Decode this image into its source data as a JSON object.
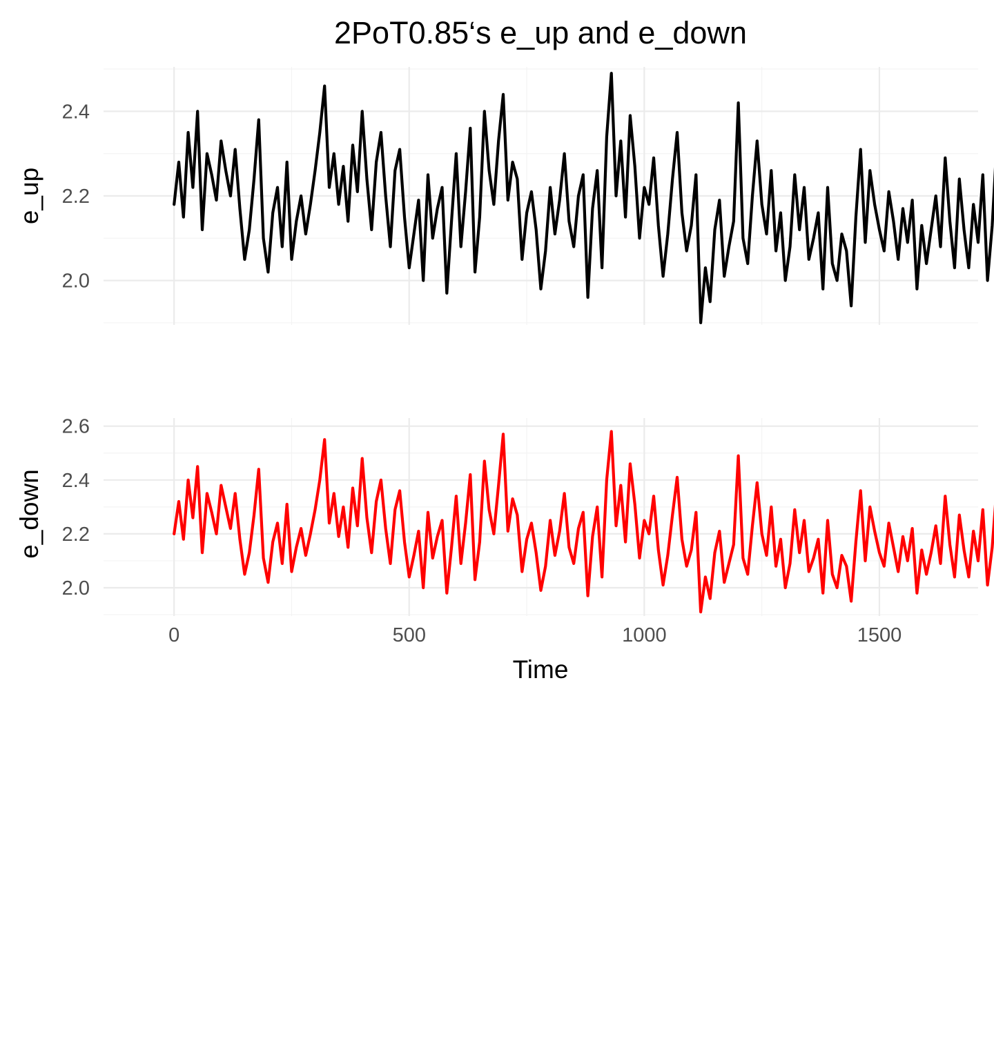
{
  "title": "2PoT0.85‘s e_up and e_down",
  "xlabel": "Time",
  "chart_data": [
    {
      "type": "line",
      "ylabel": "e_up",
      "xlim": [
        -150,
        1710
      ],
      "ylim": [
        1.895,
        2.505
      ],
      "x_ticks": [
        0,
        500,
        1000,
        1500
      ],
      "x_tick_labels": [
        "0",
        "500",
        "1000",
        "1500"
      ],
      "y_ticks": [
        2.0,
        2.2,
        2.4
      ],
      "y_tick_labels": [
        "2.0",
        "2.2",
        "2.4"
      ],
      "grid": true,
      "series": [
        {
          "color": "#000000",
          "x_start": 0,
          "x_step": 10,
          "values": [
            2.18,
            2.28,
            2.15,
            2.35,
            2.22,
            2.4,
            2.12,
            2.3,
            2.25,
            2.19,
            2.33,
            2.26,
            2.2,
            2.31,
            2.17,
            2.05,
            2.12,
            2.24,
            2.38,
            2.1,
            2.02,
            2.16,
            2.22,
            2.08,
            2.28,
            2.05,
            2.14,
            2.2,
            2.11,
            2.18,
            2.26,
            2.35,
            2.46,
            2.22,
            2.3,
            2.18,
            2.27,
            2.14,
            2.32,
            2.21,
            2.4,
            2.24,
            2.12,
            2.28,
            2.35,
            2.2,
            2.08,
            2.26,
            2.31,
            2.15,
            2.03,
            2.11,
            2.19,
            2.0,
            2.25,
            2.1,
            2.17,
            2.22,
            1.97,
            2.14,
            2.3,
            2.08,
            2.21,
            2.36,
            2.02,
            2.15,
            2.4,
            2.26,
            2.18,
            2.33,
            2.44,
            2.19,
            2.28,
            2.24,
            2.05,
            2.16,
            2.21,
            2.12,
            1.98,
            2.07,
            2.22,
            2.11,
            2.19,
            2.3,
            2.14,
            2.08,
            2.2,
            2.25,
            1.96,
            2.17,
            2.26,
            2.03,
            2.34,
            2.49,
            2.2,
            2.33,
            2.15,
            2.39,
            2.27,
            2.1,
            2.22,
            2.18,
            2.29,
            2.13,
            2.01,
            2.11,
            2.24,
            2.35,
            2.16,
            2.07,
            2.13,
            2.25,
            1.9,
            2.03,
            1.95,
            2.12,
            2.19,
            2.01,
            2.08,
            2.14,
            2.42,
            2.1,
            2.04,
            2.2,
            2.33,
            2.18,
            2.11,
            2.26,
            2.07,
            2.16,
            2.0,
            2.08,
            2.25,
            2.12,
            2.22,
            2.05,
            2.1,
            2.16,
            1.98,
            2.22,
            2.04,
            2.0,
            2.11,
            2.07,
            1.94,
            2.15,
            2.31,
            2.09,
            2.26,
            2.18,
            2.12,
            2.07,
            2.21,
            2.14,
            2.05,
            2.17,
            2.09,
            2.19,
            1.98,
            2.13,
            2.04,
            2.12,
            2.2,
            2.08,
            2.29,
            2.14,
            2.03,
            2.24,
            2.12,
            2.03,
            2.18,
            2.09,
            2.25,
            2.0,
            2.13,
            2.33,
            2.07,
            2.21,
            2.15,
            2.28,
            2.02,
            2.12,
            2.23,
            2.11,
            2.03,
            2.17,
            2.24,
            1.93,
            2.14,
            2.05,
            2.21,
            2.28,
            2.18,
            2.1,
            2.02,
            2.16,
            2.24,
            1.97,
            2.12,
            2.19,
            2.08,
            2.28,
            2.01,
            2.14,
            2.27,
            2.12,
            2.2,
            2.31,
            2.24,
            2.08,
            2.18,
            2.33,
            2.29,
            2.21,
            2.36,
            2.25,
            2.12,
            2.29,
            2.4,
            2.18,
            2.23,
            2.33,
            2.14,
            2.07,
            2.26,
            2.37,
            2.18,
            2.24,
            2.3,
            2.11,
            2.28,
            2.42,
            2.21,
            2.15,
            2.34,
            2.25,
            2.37,
            2.19,
            2.06,
            2.28,
            2.33,
            2.24,
            2.12,
            2.18,
            2.31,
            2.1,
            2.23,
            2.2
          ]
        }
      ]
    },
    {
      "type": "line",
      "ylabel": "e_down",
      "xlim": [
        -150,
        1710
      ],
      "ylim": [
        1.895,
        2.63
      ],
      "x_ticks": [
        0,
        500,
        1000,
        1500
      ],
      "x_tick_labels": [
        "0",
        "500",
        "1000",
        "1500"
      ],
      "y_ticks": [
        2.0,
        2.2,
        2.4,
        2.6
      ],
      "y_tick_labels": [
        "2.0",
        "2.2",
        "2.4",
        "2.6"
      ],
      "grid": true,
      "series": [
        {
          "color": "#ff0000",
          "x_start": 0,
          "x_step": 10,
          "values": [
            2.2,
            2.32,
            2.18,
            2.4,
            2.26,
            2.45,
            2.13,
            2.35,
            2.28,
            2.2,
            2.38,
            2.3,
            2.22,
            2.35,
            2.18,
            2.05,
            2.13,
            2.27,
            2.44,
            2.11,
            2.02,
            2.17,
            2.24,
            2.09,
            2.31,
            2.06,
            2.15,
            2.22,
            2.12,
            2.2,
            2.29,
            2.4,
            2.55,
            2.24,
            2.35,
            2.19,
            2.3,
            2.15,
            2.37,
            2.23,
            2.48,
            2.26,
            2.13,
            2.32,
            2.4,
            2.22,
            2.09,
            2.29,
            2.36,
            2.17,
            2.04,
            2.12,
            2.21,
            2.0,
            2.28,
            2.11,
            2.19,
            2.25,
            1.98,
            2.15,
            2.34,
            2.09,
            2.24,
            2.42,
            2.03,
            2.17,
            2.47,
            2.29,
            2.2,
            2.38,
            2.57,
            2.21,
            2.33,
            2.27,
            2.06,
            2.18,
            2.24,
            2.13,
            1.99,
            2.08,
            2.25,
            2.12,
            2.21,
            2.35,
            2.15,
            2.09,
            2.22,
            2.28,
            1.97,
            2.19,
            2.3,
            2.04,
            2.4,
            2.58,
            2.23,
            2.38,
            2.17,
            2.46,
            2.31,
            2.11,
            2.25,
            2.2,
            2.34,
            2.14,
            2.01,
            2.12,
            2.27,
            2.41,
            2.18,
            2.08,
            2.14,
            2.28,
            1.91,
            2.04,
            1.96,
            2.13,
            2.21,
            2.02,
            2.09,
            2.16,
            2.49,
            2.11,
            2.05,
            2.23,
            2.39,
            2.2,
            2.12,
            2.3,
            2.08,
            2.18,
            2.0,
            2.09,
            2.29,
            2.13,
            2.25,
            2.06,
            2.11,
            2.18,
            1.98,
            2.25,
            2.05,
            2.0,
            2.12,
            2.08,
            1.95,
            2.17,
            2.36,
            2.1,
            2.3,
            2.21,
            2.13,
            2.08,
            2.24,
            2.15,
            2.06,
            2.19,
            2.1,
            2.22,
            1.98,
            2.14,
            2.05,
            2.13,
            2.23,
            2.09,
            2.34,
            2.16,
            2.04,
            2.27,
            2.14,
            2.04,
            2.21,
            2.1,
            2.29,
            2.01,
            2.15,
            2.38,
            2.08,
            2.24,
            2.17,
            2.33,
            2.03,
            2.13,
            2.26,
            2.12,
            2.04,
            2.19,
            2.28,
            1.94,
            2.16,
            2.06,
            2.24,
            2.33,
            2.21,
            2.11,
            2.03,
            2.18,
            2.27,
            1.98,
            2.14,
            2.22,
            2.09,
            2.33,
            2.02,
            2.15,
            2.32,
            2.14,
            2.23,
            2.37,
            2.28,
            2.09,
            2.21,
            2.39,
            2.34,
            2.24,
            2.43,
            2.3,
            2.13,
            2.34,
            2.49,
            2.2,
            2.26,
            2.4,
            2.16,
            2.08,
            2.3,
            2.46,
            2.21,
            2.28,
            2.36,
            2.12,
            2.33,
            2.53,
            2.25,
            2.17,
            2.41,
            2.29,
            2.45,
            2.22,
            2.07,
            2.33,
            2.4,
            2.28,
            2.13,
            2.21,
            2.38,
            2.11,
            2.27,
            2.25
          ]
        }
      ]
    }
  ]
}
